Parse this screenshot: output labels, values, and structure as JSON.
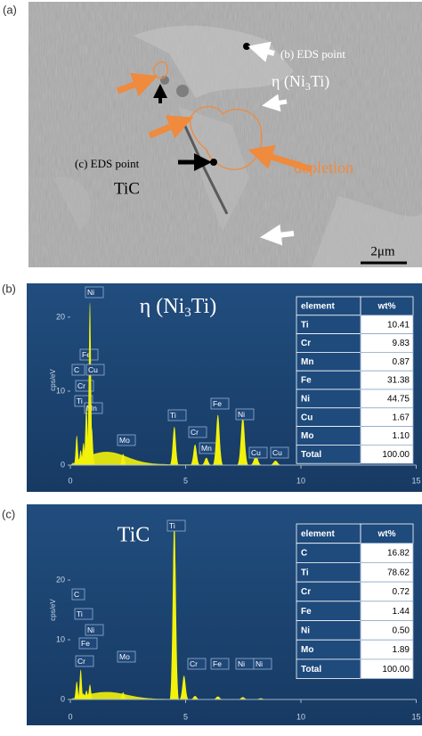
{
  "panel_a": {
    "label": "(a)",
    "eds_b": "(b) EDS point",
    "eta_phase": [
      "η (Ni",
      "3",
      "Ti)"
    ],
    "eds_c": "(c) EDS point",
    "tic": "TiC",
    "depletion": "depletion",
    "scale_bar": "2μm"
  },
  "panel_b": {
    "label": "(b)",
    "title": [
      "η (Ni",
      "3",
      "Ti)"
    ],
    "chart_data": {
      "type": "spectrum",
      "y_label": "cps/eV",
      "xlim": [
        0,
        15
      ],
      "ylim": [
        0,
        23
      ],
      "xticks": [
        0,
        5,
        10,
        15
      ],
      "yticks": [
        0,
        10,
        20
      ],
      "color": "#f2f20a",
      "peaks": {
        "labels": [
          "C",
          "Ti",
          "Cr",
          "Mn",
          "Fe",
          "Ni",
          "Cu",
          "Mo",
          "Ti",
          "Cr",
          "Mn",
          "Fe",
          "Ni",
          "Cu",
          "Cu"
        ],
        "x": [
          0.28,
          0.45,
          0.57,
          0.64,
          0.7,
          0.85,
          0.93,
          2.29,
          4.51,
          5.41,
          5.9,
          6.4,
          7.48,
          8.05,
          8.9
        ],
        "values": [
          4,
          2,
          3,
          2,
          8,
          22,
          5,
          1.5,
          5.2,
          2.8,
          1,
          6.8,
          6.5,
          1.3,
          0.6
        ]
      }
    },
    "table": {
      "header": [
        "element",
        "wt%"
      ],
      "rows": [
        [
          "Ti",
          "10.41"
        ],
        [
          "Cr",
          "9.83"
        ],
        [
          "Mn",
          "0.87"
        ],
        [
          "Fe",
          "31.38"
        ],
        [
          "Ni",
          "44.75"
        ],
        [
          "Cu",
          "1.67"
        ],
        [
          "Mo",
          "1.10"
        ],
        [
          "Total",
          "100.00"
        ]
      ]
    }
  },
  "panel_c": {
    "label": "(c)",
    "title": "TiC",
    "chart_data": {
      "type": "spectrum",
      "y_label": "cps/eV",
      "xlim": [
        0,
        15
      ],
      "ylim": [
        0,
        30
      ],
      "xticks": [
        0,
        5,
        10,
        15
      ],
      "yticks": [
        0,
        10,
        20
      ],
      "color": "#f2f20a",
      "peaks": {
        "labels": [
          "C",
          "Ti",
          "Cr",
          "Fe",
          "Ni",
          "Mo",
          "Ti",
          null,
          "Cr",
          "Fe",
          "Ni",
          "Ni"
        ],
        "x": [
          0.28,
          0.45,
          0.57,
          0.7,
          0.85,
          2.29,
          4.51,
          4.93,
          5.41,
          6.4,
          7.48,
          8.26
        ],
        "values": [
          3,
          5,
          1,
          1.5,
          2.5,
          1.2,
          30,
          4,
          0.6,
          0.5,
          0.4,
          0.2
        ]
      }
    },
    "table": {
      "header": [
        "element",
        "wt%"
      ],
      "rows": [
        [
          "C",
          "16.82"
        ],
        [
          "Ti",
          "78.62"
        ],
        [
          "Cr",
          "0.72"
        ],
        [
          "Fe",
          "1.44"
        ],
        [
          "Ni",
          "0.50"
        ],
        [
          "Mo",
          "1.89"
        ],
        [
          "Total",
          "100.00"
        ]
      ]
    }
  }
}
